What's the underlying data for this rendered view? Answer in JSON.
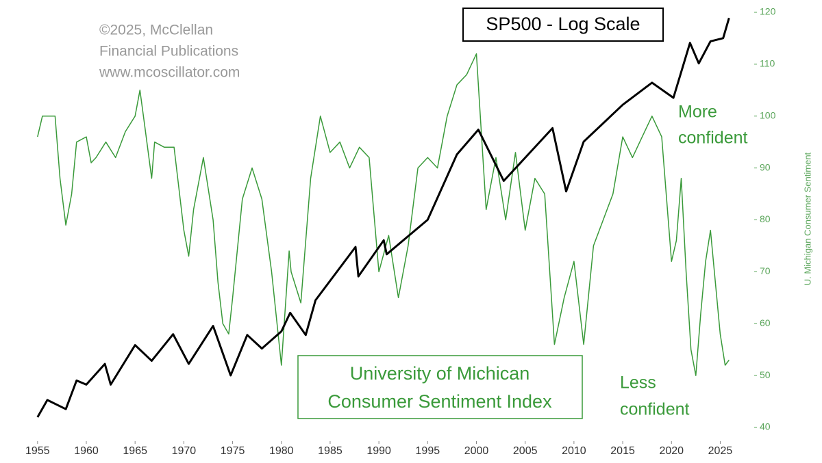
{
  "chart_data": {
    "type": "line",
    "title": "SP500 - Log Scale",
    "credit": [
      "©2025, McClellan",
      "Financial Publications",
      "www.mcoscillator.com"
    ],
    "index_box": [
      "University of Michican",
      "Consumer Sentiment Index"
    ],
    "upper_note": [
      "More",
      "confident"
    ],
    "lower_note": [
      "Less",
      "confident"
    ],
    "y2_label": "U. Michigan Consumer Sentiment",
    "xlim": [
      1954.1,
      2028.2
    ],
    "xticks": [
      1955,
      1960,
      1965,
      1970,
      1975,
      1980,
      1985,
      1990,
      1995,
      2000,
      2005,
      2010,
      2015,
      2020,
      2025
    ],
    "ylim": [
      31.5,
      7000
    ],
    "ylog": true,
    "y2lim": [
      40,
      120
    ],
    "y2ticks": [
      40,
      50,
      60,
      70,
      80,
      90,
      100,
      110,
      120
    ],
    "series": [
      {
        "name": "SP500",
        "color": "#000000",
        "x": [
          1955,
          1956,
          1957.9,
          1959,
          1960,
          1961.9,
          1962.5,
          1965,
          1966.7,
          1968.9,
          1970.5,
          1973,
          1974.8,
          1976.5,
          1978,
          1980,
          1980.9,
          1982.5,
          1983.5,
          1987.6,
          1987.9,
          1990.5,
          1990.8,
          1995,
          1998,
          2000.2,
          2002.8,
          2007.8,
          2009.2,
          2011,
          2015,
          2018,
          2020.2,
          2021.9,
          2022.8,
          2024,
          2025.3,
          2025.9
        ],
        "values": [
          36,
          45,
          40,
          58,
          55,
          72,
          55,
          92,
          75,
          106,
          72,
          118,
          62,
          105,
          88,
          110,
          140,
          105,
          165,
          330,
          225,
          360,
          300,
          470,
          1100,
          1520,
          780,
          1550,
          680,
          1300,
          2100,
          2800,
          2300,
          4700,
          3600,
          4800,
          5000,
          6500
        ]
      },
      {
        "name": "University of Michican Consumer Sentiment Index",
        "color": "#3a9a3a",
        "axis": "y2",
        "x": [
          1955,
          1955.5,
          1956,
          1956.8,
          1957.3,
          1957.9,
          1958.5,
          1959,
          1960,
          1960.5,
          1961,
          1962,
          1963,
          1964,
          1965,
          1965.5,
          1966,
          1966.7,
          1967,
          1968,
          1969,
          1970,
          1970.5,
          1971,
          1972,
          1973,
          1973.5,
          1974,
          1974.6,
          1975,
          1976,
          1977,
          1978,
          1979,
          1980,
          1980.8,
          1981,
          1982,
          1983,
          1984,
          1985,
          1986,
          1987,
          1988,
          1989,
          1990,
          1991,
          1992,
          1993,
          1994,
          1995,
          1996,
          1997,
          1998,
          1999,
          2000,
          2001,
          2002,
          2003,
          2004,
          2005,
          2006,
          2007,
          2008,
          2009,
          2010,
          2011,
          2012,
          2013,
          2014,
          2015,
          2016,
          2017,
          2018,
          2019,
          2020,
          2020.5,
          2021,
          2021.5,
          2022,
          2022.5,
          2023,
          2023.5,
          2024,
          2024.5,
          2025,
          2025.5,
          2025.9
        ],
        "values": [
          96,
          100,
          100,
          100,
          88,
          79,
          85,
          95,
          96,
          91,
          92,
          95,
          92,
          97,
          100,
          105,
          98,
          88,
          95,
          94,
          94,
          78,
          73,
          82,
          92,
          80,
          68,
          60,
          58,
          65,
          84,
          90,
          84,
          70,
          52,
          74,
          70,
          64,
          88,
          100,
          93,
          95,
          90,
          94,
          92,
          70,
          77,
          65,
          75,
          90,
          92,
          90,
          100,
          106,
          108,
          112,
          82,
          92,
          80,
          93,
          78,
          88,
          85,
          56,
          65,
          72,
          56,
          75,
          80,
          85,
          96,
          92,
          96,
          100,
          96,
          72,
          76,
          88,
          70,
          55,
          50,
          62,
          72,
          78,
          68,
          58,
          52,
          53
        ]
      }
    ]
  }
}
